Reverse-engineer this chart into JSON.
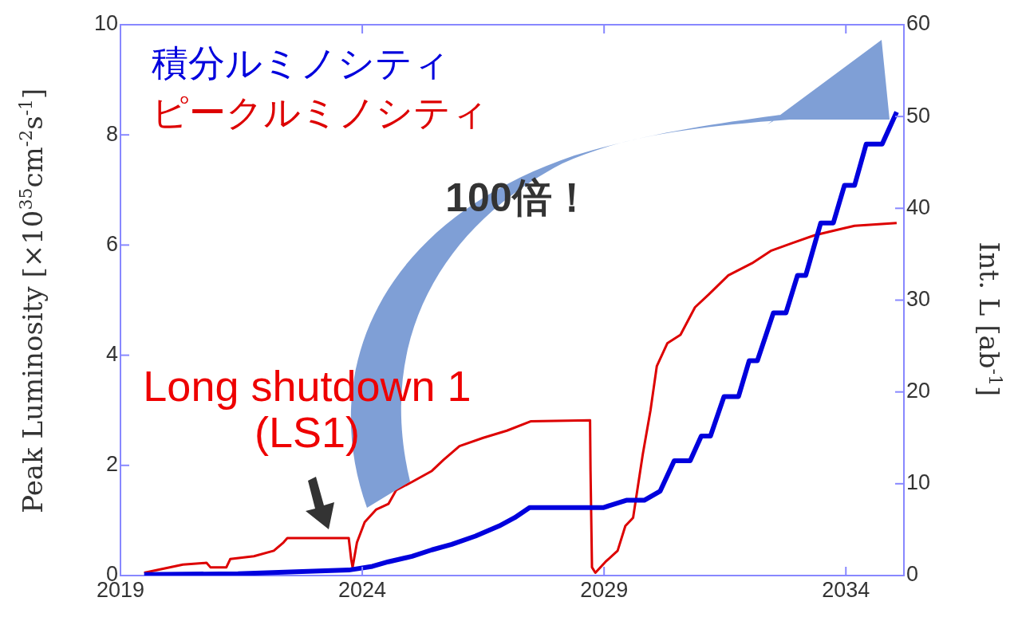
{
  "chart_data": {
    "type": "line",
    "ylabel": "Peak Luminosity [×10$^{35}$cm$^{-2}$s$^{-1}$]",
    "y2label": "Int. L [ab$^{-1}$]",
    "xlim": [
      2019,
      2035.2
    ],
    "xticks": [
      2019,
      2024,
      2029,
      2034
    ],
    "ylim": [
      0,
      10
    ],
    "yticks": [
      0,
      2,
      4,
      6,
      8,
      10
    ],
    "y2lim": [
      0,
      60
    ],
    "y2ticks": [
      0,
      10,
      20,
      30,
      40,
      50,
      60
    ],
    "legend": "top left",
    "grid": false,
    "marker": "none",
    "line_style": "solid",
    "annotations": [
      "100倍！",
      "Long shutdown 1 (LS1)"
    ],
    "series": [
      {
        "name": "積分ルミノシティ",
        "color": "#0000dd",
        "axis": "y2",
        "x": [
          2019.49,
          2021.43,
          2023.72,
          2024.21,
          2024.54,
          2025.03,
          2025.44,
          2025.85,
          2026.34,
          2026.83,
          2027.15,
          2027.46,
          2028.98,
          2029.46,
          2029.83,
          2030.16,
          2030.45,
          2030.78,
          2031.01,
          2031.2,
          2031.48,
          2031.78,
          2032.0,
          2032.17,
          2032.5,
          2032.76,
          2033.0,
          2033.17,
          2033.48,
          2033.74,
          2033.97,
          2034.18,
          2034.42,
          2034.75,
          2035.05
        ],
        "values": [
          0.1,
          0.2,
          0.6,
          1.0,
          1.5,
          2.1,
          2.8,
          3.4,
          4.3,
          5.4,
          6.3,
          7.4,
          7.4,
          8.2,
          8.2,
          9.2,
          12.5,
          12.5,
          15.2,
          15.2,
          19.5,
          19.5,
          23.4,
          23.4,
          28.6,
          28.6,
          32.7,
          32.7,
          38.4,
          38.4,
          42.5,
          42.5,
          47,
          47,
          50.5
        ]
      },
      {
        "name": "ピークルミノシティ",
        "color": "#dd0000",
        "x": [
          2019.49,
          2020.29,
          2020.78,
          2020.86,
          2021.19,
          2021.27,
          2021.76,
          2022.17,
          2022.37,
          2022.45,
          2023.72,
          2023.77,
          2023.8,
          2023.89,
          2024.05,
          2024.29,
          2024.54,
          2024.7,
          2025.03,
          2025.44,
          2025.68,
          2026.01,
          2026.5,
          2026.99,
          2027.48,
          2028.71,
          2028.72,
          2028.75,
          2028.82,
          2029.03,
          2029.28,
          2029.44,
          2029.6,
          2029.8,
          2029.96,
          2030.09,
          2030.31,
          2030.58,
          2030.88,
          2031.16,
          2031.57,
          2032.06,
          2032.46,
          2032.87,
          2033.36,
          2033.93,
          2034.18,
          2035.05
        ],
        "values": [
          0.05,
          0.2,
          0.23,
          0.15,
          0.15,
          0.3,
          0.35,
          0.45,
          0.6,
          0.68,
          0.68,
          0.3,
          0.15,
          0.6,
          0.97,
          1.2,
          1.3,
          1.55,
          1.7,
          1.9,
          2.1,
          2.35,
          2.5,
          2.63,
          2.8,
          2.82,
          1.9,
          0.15,
          0.05,
          0.25,
          0.45,
          0.9,
          1.05,
          2.2,
          3.0,
          3.8,
          4.22,
          4.37,
          4.87,
          5.1,
          5.45,
          5.67,
          5.9,
          6.03,
          6.18,
          6.3,
          6.35,
          6.4
        ]
      }
    ]
  }
}
